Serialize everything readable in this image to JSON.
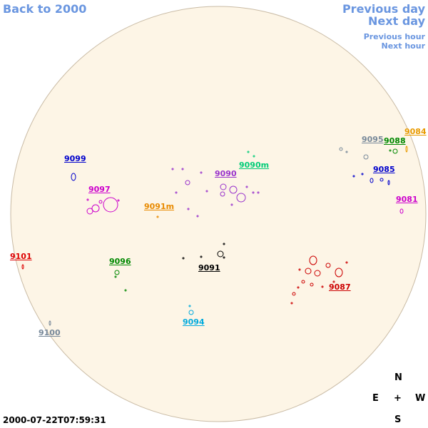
{
  "navigation": {
    "back": "Back to 2000",
    "previous_day": "Previous day",
    "next_day": "Next day",
    "previous_hour": "Previous hour",
    "next_hour": "Next hour"
  },
  "regions": [
    {
      "label": "9099",
      "color": "#0000cc"
    },
    {
      "label": "9097",
      "color": "#cc00cc"
    },
    {
      "label": "9091m",
      "color": "#e88a00"
    },
    {
      "label": "9090",
      "color": "#9933cc"
    },
    {
      "label": "9090m",
      "color": "#00cc77"
    },
    {
      "label": "9095",
      "color": "#778899"
    },
    {
      "label": "9088",
      "color": "#008800"
    },
    {
      "label": "9084",
      "color": "#e89a00"
    },
    {
      "label": "9085",
      "color": "#0000cc"
    },
    {
      "label": "9081",
      "color": "#cc00cc"
    },
    {
      "label": "9101",
      "color": "#dd0000"
    },
    {
      "label": "9096",
      "color": "#008800"
    },
    {
      "label": "9091",
      "color": "#000000"
    },
    {
      "label": "9087",
      "color": "#cc0000"
    },
    {
      "label": "9094",
      "color": "#00aadd"
    },
    {
      "label": "9100",
      "color": "#778899"
    }
  ],
  "timestamp": "2000-07-22T07:59:31",
  "compass": {
    "north": "N",
    "east": "E",
    "center": "+",
    "west": "W",
    "south": "S"
  }
}
